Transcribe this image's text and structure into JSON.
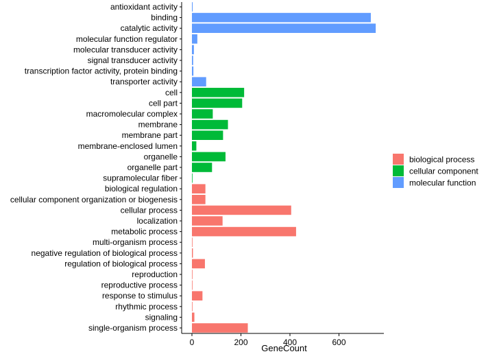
{
  "chart_data": {
    "type": "bar",
    "orientation": "horizontal",
    "xlabel": "GeneCount",
    "ylabel": "",
    "xlim": [
      -20,
      780
    ],
    "xticks": [
      0,
      200,
      400,
      600
    ],
    "grid": false,
    "legend_position": "right",
    "legend": [
      {
        "name": "biological  process",
        "color": "#F8766D"
      },
      {
        "name": "cellular  component",
        "color": "#00BA38"
      },
      {
        "name": "molecular  function",
        "color": "#619CFF"
      }
    ],
    "categories": [
      {
        "label": "antioxidant activity",
        "value": 3,
        "group": 2
      },
      {
        "label": "binding",
        "value": 730,
        "group": 2
      },
      {
        "label": "catalytic activity",
        "value": 750,
        "group": 2
      },
      {
        "label": "molecular function regulator",
        "value": 22,
        "group": 2
      },
      {
        "label": "molecular transducer activity",
        "value": 8,
        "group": 2
      },
      {
        "label": "signal transducer activity",
        "value": 5,
        "group": 2
      },
      {
        "label": "transcription factor activity, protein binding",
        "value": 6,
        "group": 2
      },
      {
        "label": "transporter activity",
        "value": 58,
        "group": 2
      },
      {
        "label": "cell",
        "value": 213,
        "group": 1
      },
      {
        "label": "cell part",
        "value": 205,
        "group": 1
      },
      {
        "label": "macromolecular complex",
        "value": 85,
        "group": 1
      },
      {
        "label": "membrane",
        "value": 147,
        "group": 1
      },
      {
        "label": "membrane part",
        "value": 127,
        "group": 1
      },
      {
        "label": "membrane-enclosed lumen",
        "value": 18,
        "group": 1
      },
      {
        "label": "organelle",
        "value": 137,
        "group": 1
      },
      {
        "label": "organelle part",
        "value": 82,
        "group": 1
      },
      {
        "label": "supramolecular fiber",
        "value": 2,
        "group": 1
      },
      {
        "label": "biological regulation",
        "value": 55,
        "group": 0
      },
      {
        "label": "cellular component organization or biogenesis",
        "value": 55,
        "group": 0
      },
      {
        "label": "cellular process",
        "value": 405,
        "group": 0
      },
      {
        "label": "localization",
        "value": 125,
        "group": 0
      },
      {
        "label": "metabolic process",
        "value": 425,
        "group": 0
      },
      {
        "label": "multi-organism process",
        "value": 2,
        "group": 0
      },
      {
        "label": "negative regulation of biological process",
        "value": 4,
        "group": 0
      },
      {
        "label": "regulation of biological process",
        "value": 53,
        "group": 0
      },
      {
        "label": "reproduction",
        "value": 2,
        "group": 0
      },
      {
        "label": "reproductive process",
        "value": 2,
        "group": 0
      },
      {
        "label": "response to stimulus",
        "value": 43,
        "group": 0
      },
      {
        "label": "rhythmic process",
        "value": 2,
        "group": 0
      },
      {
        "label": "signaling",
        "value": 10,
        "group": 0
      },
      {
        "label": "single-organism process",
        "value": 228,
        "group": 0
      }
    ]
  }
}
